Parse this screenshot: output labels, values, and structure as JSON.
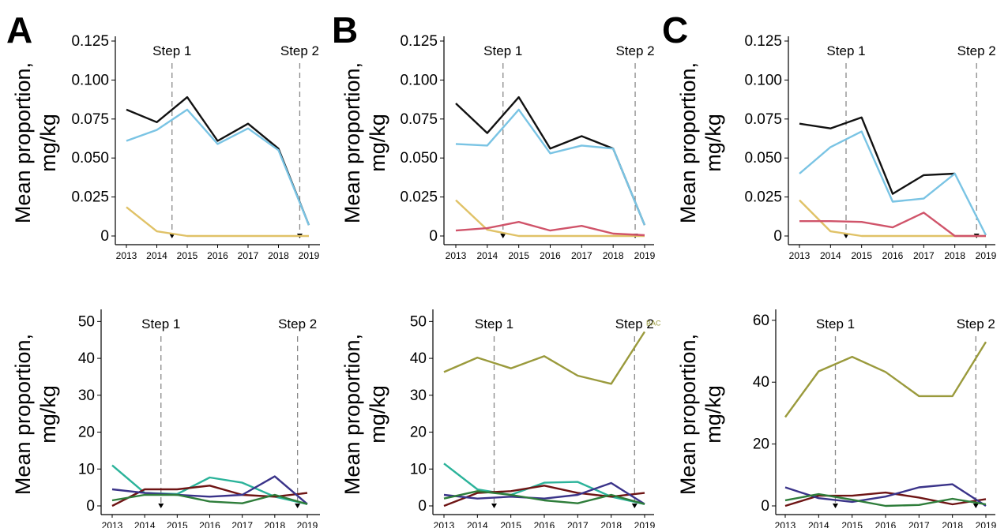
{
  "panel_letters": [
    "A",
    "B",
    "C"
  ],
  "colors": {
    "black": "#111111",
    "skyblue": "#7ac4e4",
    "gold": "#e0c267",
    "rose": "#d0546a",
    "teal": "#2bb39a",
    "maroon": "#6e1414",
    "navy": "#3a3389",
    "green": "#2e7d3a",
    "olive": "#9a9a3c"
  },
  "chart_data": [
    {
      "id": "A-top",
      "type": "line",
      "ylabel": "Mean proportion, mg/kg",
      "x": [
        2013,
        2014,
        2015,
        2016,
        2017,
        2018,
        2019
      ],
      "ylim": [
        0,
        0.125
      ],
      "yticks": [
        0,
        0.025,
        0.05,
        0.075,
        0.1,
        0.125
      ],
      "ytick_labels": [
        "0",
        "0.025",
        "0.050",
        "0.075",
        "0.100",
        "0.125"
      ],
      "steps": [
        {
          "label": "Step 1",
          "x": 2014.5
        },
        {
          "label": "Step 2",
          "x": 2018.7
        }
      ],
      "series": [
        {
          "color": "black",
          "values": [
            0.081,
            0.073,
            0.089,
            0.061,
            0.072,
            0.056,
            0.007
          ]
        },
        {
          "color": "skyblue",
          "values": [
            0.061,
            0.068,
            0.081,
            0.059,
            0.069,
            0.055,
            0.007
          ]
        },
        {
          "color": "gold",
          "values": [
            0.0185,
            0.003,
            0,
            0,
            0,
            0,
            0
          ]
        }
      ]
    },
    {
      "id": "B-top",
      "type": "line",
      "ylabel": "Mean proportion, mg/kg",
      "x": [
        2013,
        2014,
        2015,
        2016,
        2017,
        2018,
        2019
      ],
      "ylim": [
        0,
        0.125
      ],
      "yticks": [
        0,
        0.025,
        0.05,
        0.075,
        0.1,
        0.125
      ],
      "ytick_labels": [
        "0",
        "0.025",
        "0.050",
        "0.075",
        "0.100",
        "0.125"
      ],
      "steps": [
        {
          "label": "Step 1",
          "x": 2014.5
        },
        {
          "label": "Step 2",
          "x": 2018.7
        }
      ],
      "series": [
        {
          "color": "black",
          "values": [
            0.085,
            0.066,
            0.089,
            0.056,
            0.064,
            0.056,
            0.007
          ]
        },
        {
          "color": "skyblue",
          "values": [
            0.059,
            0.058,
            0.081,
            0.053,
            0.058,
            0.056,
            0.007
          ]
        },
        {
          "color": "gold",
          "values": [
            0.023,
            0.004,
            0,
            0,
            0,
            0,
            0
          ]
        },
        {
          "color": "rose",
          "values": [
            0.0035,
            0.005,
            0.009,
            0.0035,
            0.0065,
            0.0015,
            0.0005
          ]
        }
      ]
    },
    {
      "id": "C-top",
      "type": "line",
      "ylabel": "Mean proportion, mg/kg",
      "x": [
        2013,
        2014,
        2015,
        2016,
        2017,
        2018,
        2019
      ],
      "ylim": [
        0,
        0.125
      ],
      "yticks": [
        0,
        0.025,
        0.05,
        0.075,
        0.1,
        0.125
      ],
      "ytick_labels": [
        "0",
        "0.025",
        "0.050",
        "0.075",
        "0.100",
        "0.125"
      ],
      "steps": [
        {
          "label": "Step 1",
          "x": 2014.5
        },
        {
          "label": "Step 2",
          "x": 2018.7
        }
      ],
      "series": [
        {
          "color": "black",
          "values": [
            0.072,
            0.069,
            0.076,
            0.027,
            0.039,
            0.04,
            null
          ]
        },
        {
          "color": "skyblue",
          "values": [
            0.04,
            0.057,
            0.067,
            0.022,
            0.024,
            0.04,
            0.0005
          ]
        },
        {
          "color": "gold",
          "values": [
            0.023,
            0.003,
            0,
            0,
            0,
            0,
            0
          ]
        },
        {
          "color": "rose",
          "values": [
            0.0095,
            0.0095,
            0.009,
            0.0055,
            0.015,
            0,
            0
          ]
        }
      ]
    },
    {
      "id": "A-bottom",
      "type": "line",
      "ylabel": "Mean proportion, mg/kg",
      "x": [
        2013,
        2014,
        2015,
        2016,
        2017,
        2018,
        2019
      ],
      "ylim": [
        0,
        52
      ],
      "yticks": [
        0,
        10,
        20,
        30,
        40,
        50
      ],
      "ytick_labels": [
        "0",
        "10",
        "20",
        "30",
        "40",
        "50"
      ],
      "steps": [
        {
          "label": "Step 1",
          "x": 2014.5
        },
        {
          "label": "Step 2",
          "x": 2018.7
        }
      ],
      "series": [
        {
          "color": "teal",
          "values": [
            11,
            3.5,
            3.2,
            7.7,
            6.3,
            2.5,
            0.5
          ]
        },
        {
          "color": "maroon",
          "values": [
            0,
            4.5,
            4.5,
            5.5,
            3,
            2.5,
            3.5
          ]
        },
        {
          "color": "navy",
          "values": [
            4.5,
            3.5,
            3,
            2.5,
            3,
            8,
            0.5
          ]
        },
        {
          "color": "green",
          "values": [
            1.5,
            3,
            3,
            1.2,
            0.7,
            3,
            0.5
          ]
        }
      ]
    },
    {
      "id": "B-bottom",
      "type": "line",
      "ylabel": "Mean proportion, mg/kg",
      "x": [
        2013,
        2014,
        2015,
        2016,
        2017,
        2018,
        2019
      ],
      "ylim": [
        0,
        52
      ],
      "yticks": [
        0,
        10,
        20,
        30,
        40,
        50
      ],
      "ytick_labels": [
        "0",
        "10",
        "20",
        "30",
        "40",
        "50"
      ],
      "steps": [
        {
          "label": "Step 1",
          "x": 2014.5
        },
        {
          "label": "Step 2",
          "x": 2018.7
        }
      ],
      "annotation": "BAC",
      "series": [
        {
          "color": "olive",
          "values": [
            36.3,
            40.2,
            37.3,
            40.6,
            35.3,
            33.1,
            47.2
          ]
        },
        {
          "color": "teal",
          "values": [
            11.5,
            4.5,
            3,
            6.3,
            6.5,
            2.5,
            0.5
          ]
        },
        {
          "color": "maroon",
          "values": [
            0,
            3.5,
            4,
            5.5,
            3.5,
            2.5,
            3.5
          ]
        },
        {
          "color": "navy",
          "values": [
            3,
            2,
            2.5,
            2,
            3,
            6.2,
            0.5
          ]
        },
        {
          "color": "green",
          "values": [
            2,
            4,
            3,
            1.5,
            0.7,
            3,
            0.5
          ]
        }
      ]
    },
    {
      "id": "C-bottom",
      "type": "line",
      "ylabel": "Mean proportion, mg/kg",
      "x": [
        2013,
        2014,
        2015,
        2016,
        2017,
        2018,
        2019
      ],
      "ylim": [
        0,
        62
      ],
      "yticks": [
        0,
        20,
        40,
        60
      ],
      "ytick_labels": [
        "0",
        "20",
        "40",
        "60"
      ],
      "steps": [
        {
          "label": "Step 1",
          "x": 2014.5
        },
        {
          "label": "Step 2",
          "x": 2018.7
        }
      ],
      "series": [
        {
          "color": "olive",
          "values": [
            28.7,
            43.5,
            48.2,
            43.3,
            35.5,
            35.5,
            53
          ]
        },
        {
          "color": "maroon",
          "values": [
            0,
            3.3,
            3.3,
            4.3,
            2.7,
            0.5,
            2.2
          ]
        },
        {
          "color": "navy",
          "values": [
            6,
            2.5,
            1.3,
            3,
            6,
            7,
            0
          ]
        },
        {
          "color": "green",
          "values": [
            1.8,
            3.8,
            2,
            0,
            0.3,
            2.3,
            0.5
          ]
        }
      ]
    }
  ]
}
